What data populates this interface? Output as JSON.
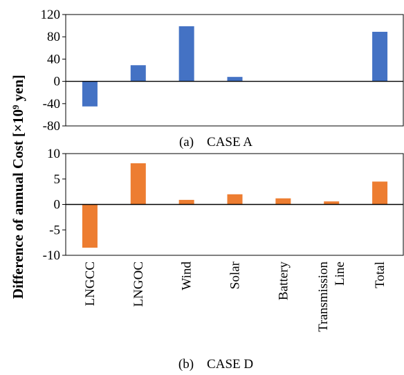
{
  "ylabel": "Difference of annual Cost [×10⁹ yen]",
  "chart_data": [
    {
      "type": "bar",
      "caption": "(a)    CASE A",
      "categories": [
        "LNGCC",
        "LNGOC",
        "Wind",
        "Solar",
        "Battery",
        "Transmission Line",
        "Total"
      ],
      "values": [
        -45,
        29,
        99,
        8,
        0,
        0,
        89
      ],
      "ylim": [
        -80,
        120
      ],
      "yticks": [
        -80,
        -40,
        0,
        40,
        80,
        120
      ],
      "ytick_labels": [
        "-80",
        "-40",
        "0",
        "40",
        "80",
        "120"
      ],
      "color": "#4472c4",
      "grid": false
    },
    {
      "type": "bar",
      "caption": "(b)    CASE D",
      "categories": [
        "LNGCC",
        "LNGOC",
        "Wind",
        "Solar",
        "Battery",
        "Transmission Line",
        "Total"
      ],
      "category_labels": [
        [
          "LNGCC"
        ],
        [
          "LNGOC"
        ],
        [
          "Wind"
        ],
        [
          "Solar"
        ],
        [
          "Battery"
        ],
        [
          "Transmission",
          "Line"
        ],
        [
          "Total"
        ]
      ],
      "values": [
        -8.5,
        8.1,
        0.9,
        2.0,
        1.2,
        0.6,
        4.5
      ],
      "ylim": [
        -10,
        10
      ],
      "yticks": [
        -10,
        -5,
        0,
        5,
        10
      ],
      "ytick_labels": [
        "-10",
        "-5",
        "0",
        "5",
        "10"
      ],
      "color": "#ed7d31",
      "grid": false
    }
  ]
}
